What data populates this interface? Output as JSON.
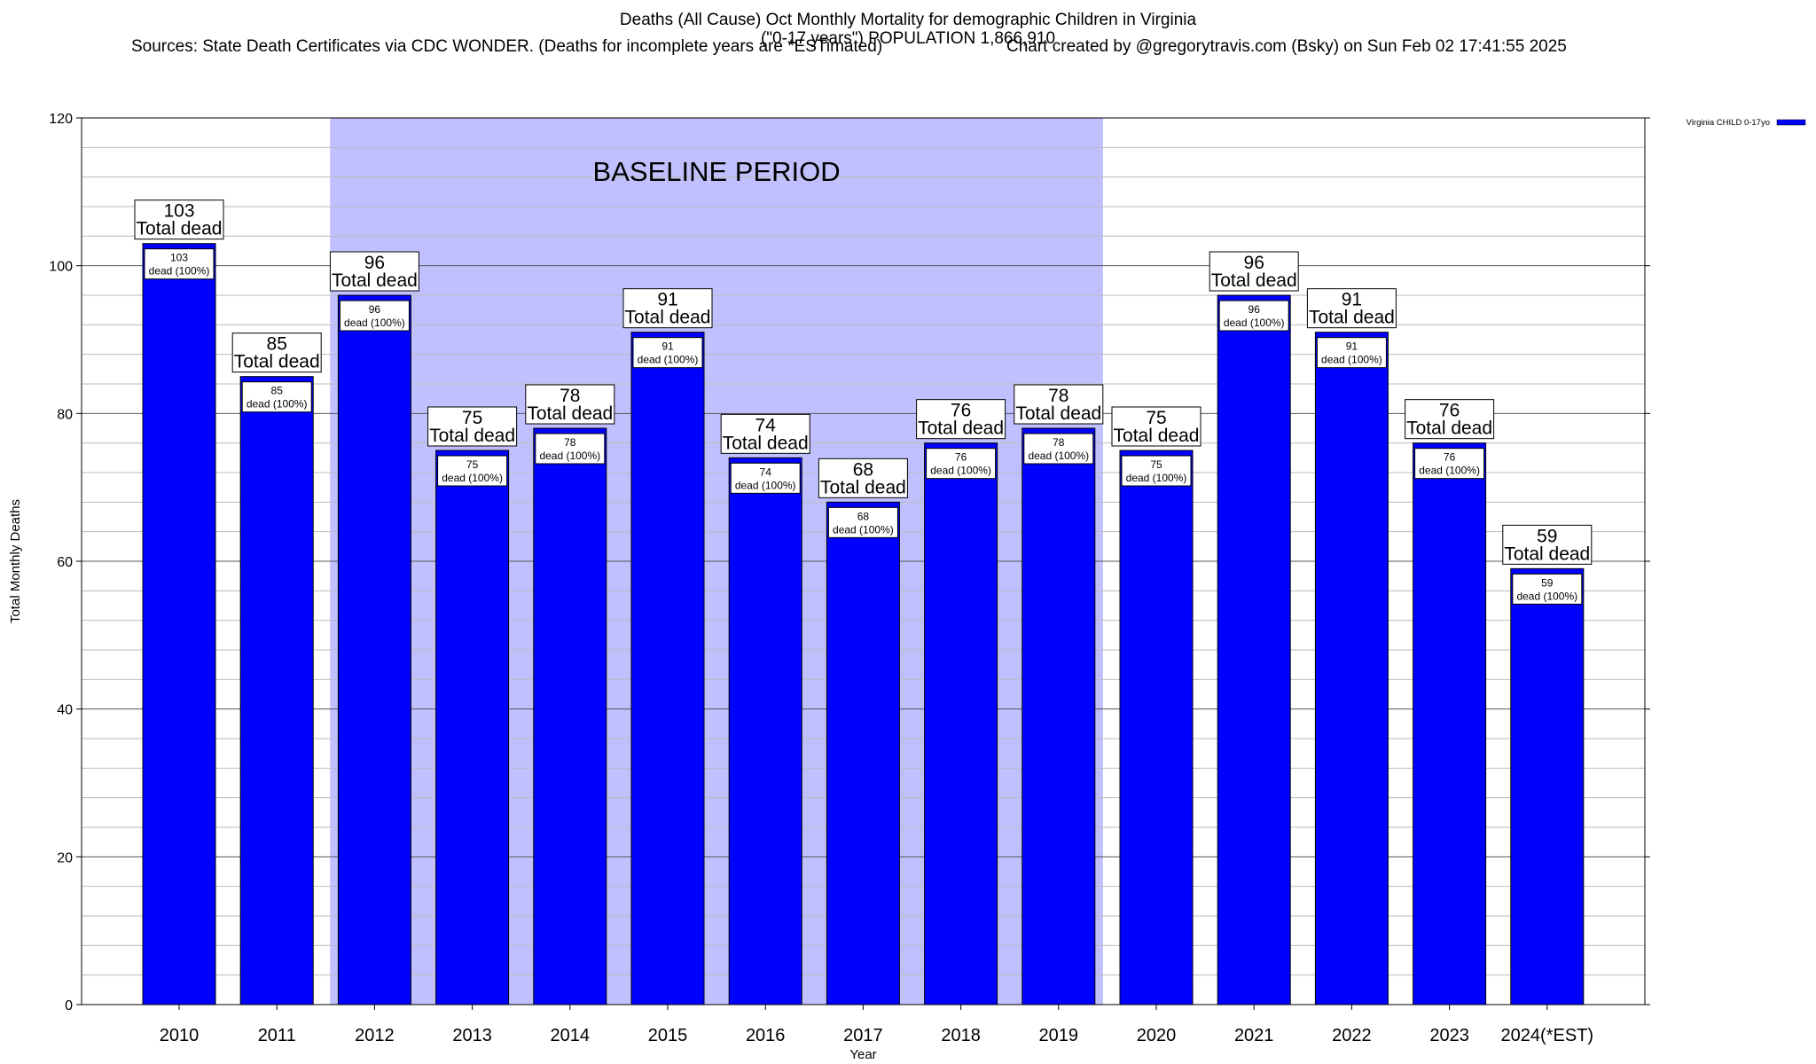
{
  "chart_data": {
    "type": "bar",
    "title": "Deaths (All Cause) Oct Monthly Mortality for demographic Children in Virginia",
    "subtitle": "(\"0-17 years\") POPULATION 1,866,910",
    "sources": "Sources: State Death Certificates via CDC WONDER. (Deaths for incomplete years are *ESTimated)",
    "credit": "Chart created by @gregorytravis.com (Bsky) on Sun Feb 02 17:41:55 2025",
    "xlabel": "Year",
    "ylabel": "Total Monthly Deaths",
    "ylim": [
      0,
      120
    ],
    "y_ticks": [
      0,
      20,
      40,
      60,
      80,
      100,
      120
    ],
    "grid": true,
    "categories": [
      "2010",
      "2011",
      "2012",
      "2013",
      "2014",
      "2015",
      "2016",
      "2017",
      "2018",
      "2019",
      "2020",
      "2021",
      "2022",
      "2023",
      "2024(*EST)"
    ],
    "series": [
      {
        "name": "Virginia CHILD 0-17yo",
        "color": "#0000ff",
        "values": [
          103,
          85,
          96,
          75,
          78,
          91,
          74,
          68,
          76,
          78,
          75,
          96,
          91,
          76,
          59
        ]
      }
    ],
    "bar_label_top": "Total dead",
    "bar_label_inner": "dead (100%)",
    "baseline_band": {
      "label": "BASELINE PERIOD",
      "from_category": "2012",
      "to_category": "2019",
      "color": "#c0c0ff"
    },
    "legend_position": "top-right outside"
  }
}
